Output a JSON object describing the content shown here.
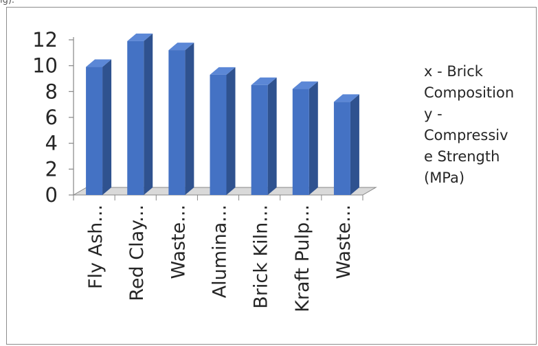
{
  "top_fragment": "ig).",
  "legend": {
    "lines": [
      "x - Brick",
      "Composition",
      "y -",
      "Compressiv",
      "e Strength",
      "(MPa)"
    ]
  },
  "colors": {
    "bar_front": "#4472c4",
    "bar_side": "#2f528f",
    "bar_top": "#5b87d6",
    "floor": "#d9d9d9",
    "axis": "#868686"
  },
  "chart_data": {
    "type": "bar",
    "style": "3d-column",
    "categories": [
      "Fly Ash...",
      "Red Clay...",
      "Waste...",
      "Alumina...",
      "Brick Kiln...",
      "Kraft Pulp...",
      "Waste..."
    ],
    "values": [
      9.9,
      11.9,
      11.2,
      9.3,
      8.5,
      8.2,
      7.2
    ],
    "ylim": [
      0,
      12
    ],
    "yticks": [
      0,
      2,
      4,
      6,
      8,
      10,
      12
    ],
    "grid": false,
    "legend_position": "right"
  }
}
